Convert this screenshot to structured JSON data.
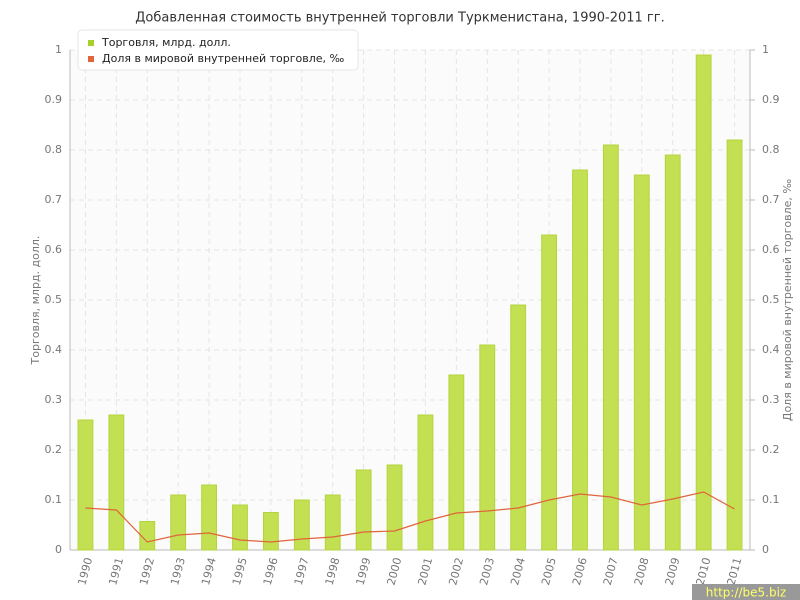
{
  "chart_data": {
    "type": "bar-line",
    "title": "Добавленная стоимость внутренней торговли Туркменистана, 1990-2011 гг.",
    "y_label": "Торговля, млрд. долл.",
    "y2_label": "Доля в мировой внутренней торговле, ‰",
    "watermark": "http://be5.biz",
    "categories": [
      "1990",
      "1991",
      "1992",
      "1993",
      "1994",
      "1995",
      "1996",
      "1997",
      "1998",
      "1999",
      "2000",
      "2001",
      "2002",
      "2003",
      "2004",
      "2005",
      "2006",
      "2007",
      "2008",
      "2009",
      "2010",
      "2011"
    ],
    "series": [
      {
        "name": "Торговля, млрд. долл.",
        "type": "bar",
        "color": "#c3e053",
        "values": [
          0.26,
          0.27,
          0.057,
          0.11,
          0.13,
          0.09,
          0.075,
          0.1,
          0.11,
          0.16,
          0.17,
          0.27,
          0.35,
          0.41,
          0.49,
          0.63,
          0.76,
          0.81,
          0.75,
          0.79,
          0.99,
          0.82
        ]
      },
      {
        "name": "Доля в мировой внутренней торговле, ‰",
        "type": "line",
        "axis": "y2",
        "color": "#e0643c",
        "values": [
          0.084,
          0.08,
          0.016,
          0.03,
          0.034,
          0.02,
          0.016,
          0.022,
          0.026,
          0.036,
          0.038,
          0.058,
          0.074,
          0.078,
          0.084,
          0.1,
          0.112,
          0.106,
          0.09,
          0.102,
          0.116,
          0.082
        ]
      }
    ],
    "ylim": [
      0,
      1
    ],
    "yticks": [
      0,
      0.1,
      0.2,
      0.3,
      0.4,
      0.5,
      0.6,
      0.7,
      0.8,
      0.9,
      1
    ],
    "y2lim": [
      0,
      1
    ],
    "y2ticks": [
      0,
      0.1,
      0.2,
      0.3,
      0.4,
      0.5,
      0.6,
      0.7,
      0.8,
      0.9,
      1
    ],
    "grid": true,
    "legend": "top-left"
  }
}
